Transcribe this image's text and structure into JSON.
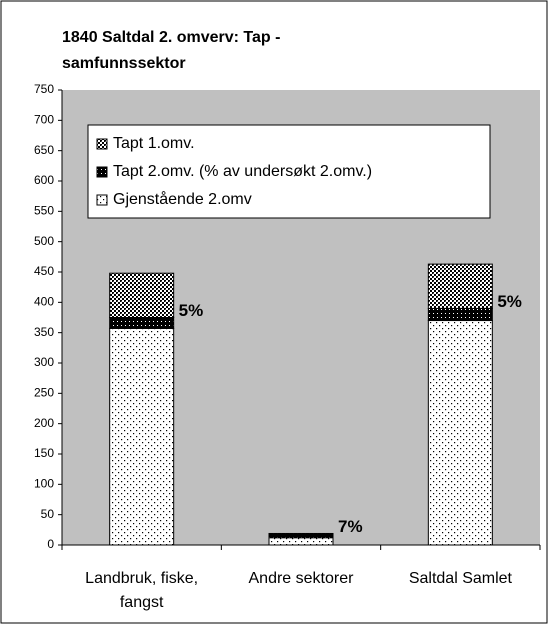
{
  "chart_data": {
    "type": "stacked-bar",
    "title": "1840 Saltdal 2. omverv: Tap - samfunnssektor",
    "categories": [
      "Landbruk, fiske, fangst",
      "Andre sektorer",
      "Saltdal Samlet"
    ],
    "series": [
      {
        "name": "Gjenstående 2.omv",
        "values": [
          357,
          12,
          370
        ]
      },
      {
        "name": "Tapt 2.omv. (% av undersøkt 2.omv.)",
        "values": [
          18,
          7,
          20
        ]
      },
      {
        "name": "Tapt 1.omv.",
        "values": [
          73,
          0,
          73
        ]
      }
    ],
    "annotations": [
      "5%",
      "7%",
      "5%"
    ],
    "ylim": [
      0,
      750
    ],
    "yticks": [
      0,
      50,
      100,
      150,
      200,
      250,
      300,
      350,
      400,
      450,
      500,
      550,
      600,
      650,
      700,
      750
    ],
    "grid": false
  }
}
